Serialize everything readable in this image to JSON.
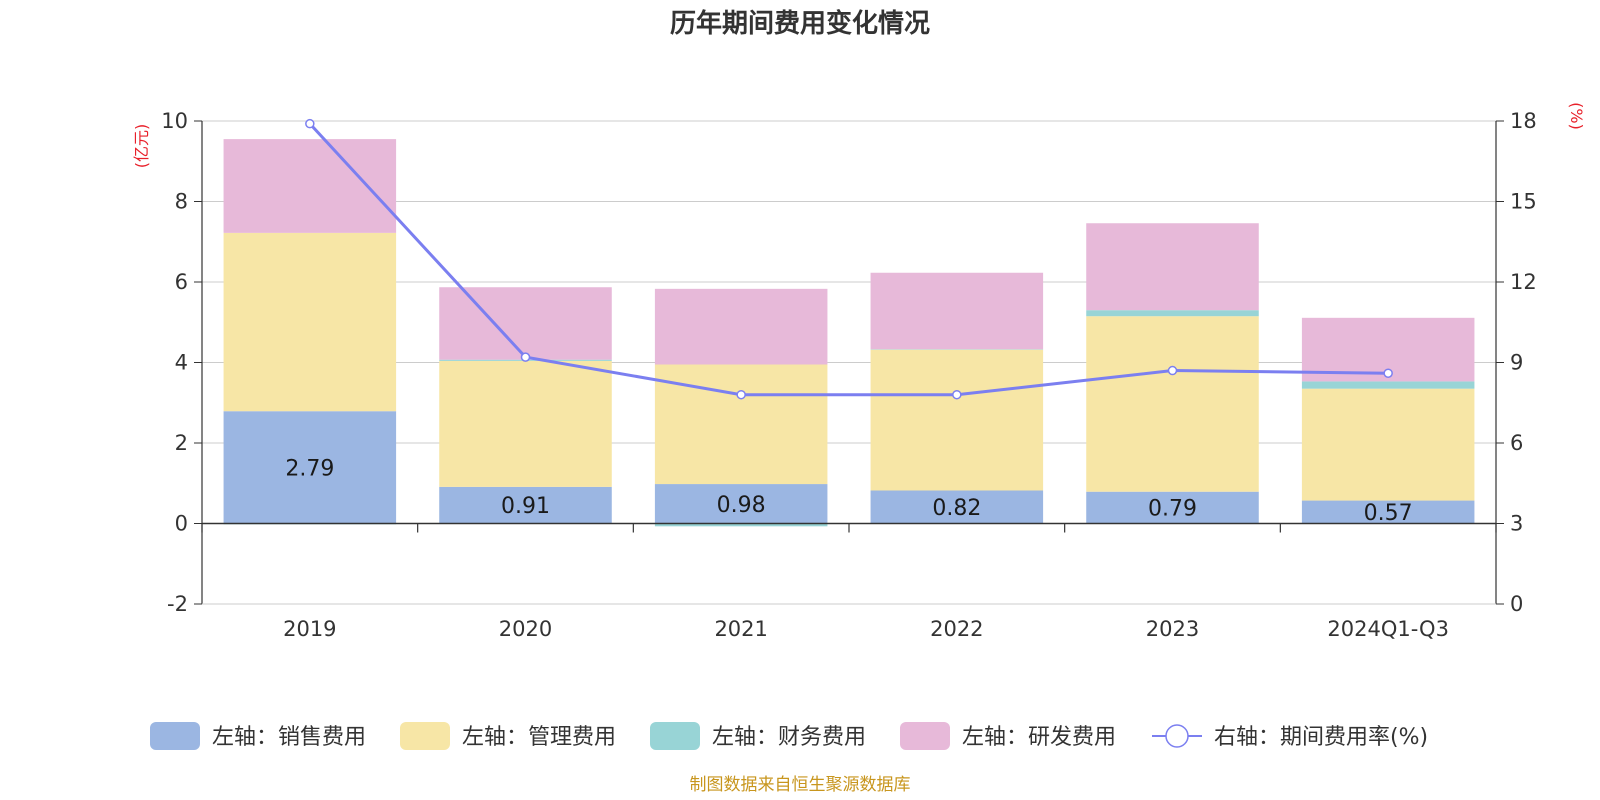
{
  "chart_data": {
    "type": "bar",
    "stacked": true,
    "title": "历年期间费用变化情况",
    "categories": [
      "2019",
      "2020",
      "2021",
      "2022",
      "2023",
      "2024Q1-Q3"
    ],
    "left_axis": {
      "unit": "(亿元)",
      "ylim": [
        -2,
        10
      ],
      "ticks": [
        "-2",
        "0",
        "2",
        "4",
        "6",
        "8",
        "10"
      ]
    },
    "right_axis": {
      "unit": "(%)",
      "ylim": [
        0,
        18
      ],
      "ticks": [
        "0",
        "3",
        "6",
        "9",
        "12",
        "15",
        "18"
      ]
    },
    "series": [
      {
        "name": "左轴：销售费用",
        "axis": "left",
        "color": "#9bb6e2",
        "values": [
          2.79,
          0.91,
          0.98,
          0.82,
          0.79,
          0.57
        ],
        "labels": [
          "2.79",
          "0.91",
          "0.98",
          "0.82",
          "0.79",
          "0.57"
        ]
      },
      {
        "name": "左轴：管理费用",
        "axis": "left",
        "color": "#f7e6a6",
        "values": [
          4.43,
          3.13,
          2.97,
          3.5,
          4.36,
          2.78
        ]
      },
      {
        "name": "左轴：财务费用",
        "axis": "left",
        "color": "#98d4d6",
        "values": [
          -0.02,
          0.03,
          -0.07,
          0.01,
          0.15,
          0.18
        ]
      },
      {
        "name": "左轴：研发费用",
        "axis": "left",
        "color": "#e7b9d9",
        "values": [
          2.33,
          1.8,
          1.88,
          1.9,
          2.16,
          1.58
        ]
      },
      {
        "name": "右轴：期间费用率(%)",
        "axis": "right",
        "type": "line",
        "color": "#7b7ff0",
        "values": [
          17.9,
          9.2,
          7.8,
          7.8,
          8.7,
          8.6
        ]
      }
    ],
    "legend_position": "bottom",
    "grid": true
  },
  "footer": {
    "source": "制图数据来自恒生聚源数据库",
    "source_color": "#c8961e"
  },
  "colors": {
    "axis_unit": "#e8202a",
    "axis_line": "#333333",
    "grid": "#cccccc"
  }
}
